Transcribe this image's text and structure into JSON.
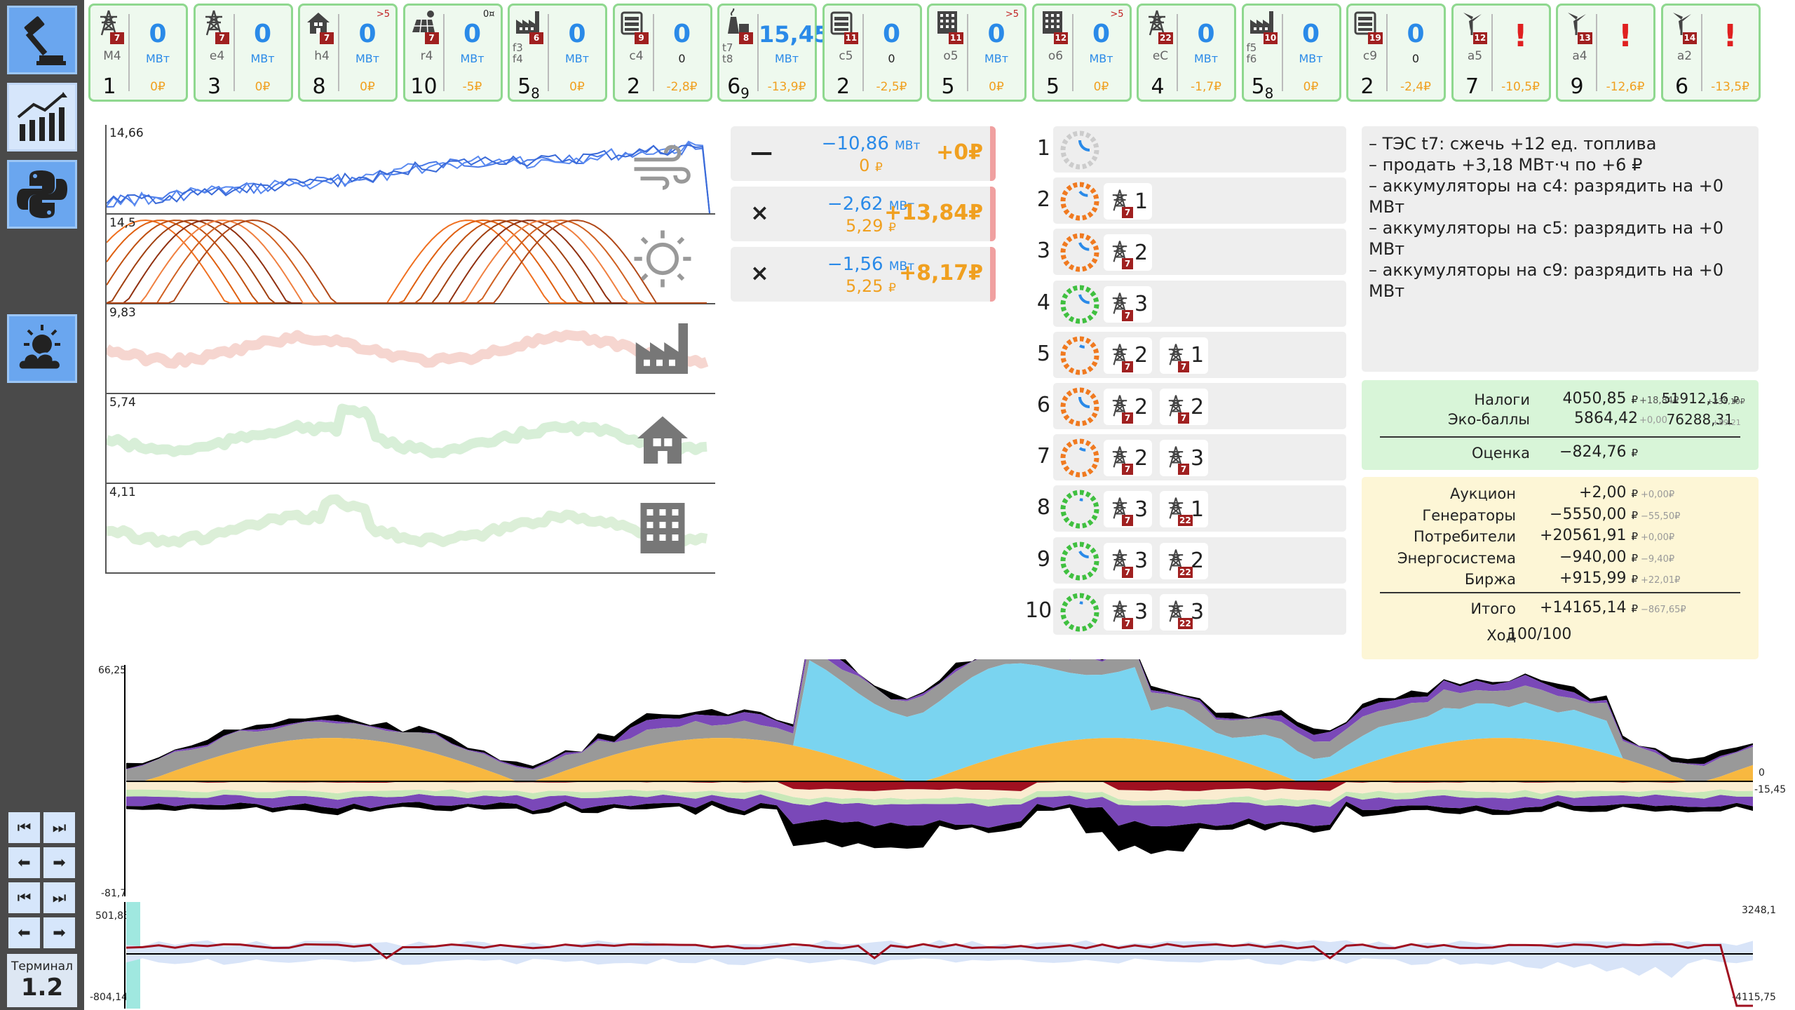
{
  "terminal": {
    "label": "Терминал",
    "version": "1.2"
  },
  "colors": {
    "accent": "#6aa6ef",
    "card_bg": "#eef9ee",
    "card_border": "#8fd88f",
    "blue": "#2a8ae8",
    "orange": "#f0a020",
    "badge": "#a02020"
  },
  "objects": [
    {
      "label": "M4",
      "badge": "7",
      "value": "0",
      "unit": "МВт",
      "num": "1",
      "money": "0₽",
      "icon": "power-line-icon"
    },
    {
      "label": "e4",
      "badge": "7",
      "value": "0",
      "unit": "МВт",
      "num": "3",
      "money": "0₽",
      "icon": "power-line-icon"
    },
    {
      "label": "h4",
      "badge": "7",
      "sup": ">5",
      "value": "0",
      "unit": "МВт",
      "num": "8",
      "money": "0₽",
      "icon": "house-icon"
    },
    {
      "label": "r4",
      "badge": "7",
      "sup": "0¤",
      "value": "0",
      "unit": "МВт",
      "num": "10",
      "money": "-5₽",
      "icon": "solar-panel-icon"
    },
    {
      "label": "f3 f4",
      "badge": "6",
      "value": "0",
      "unit": "МВт",
      "num": "5",
      "numsub": "8",
      "money": "0₽",
      "icon": "factory-icon"
    },
    {
      "label": "c4",
      "badge": "9",
      "value": "0",
      "unit": "0",
      "num": "2",
      "money": "-2,8₽",
      "icon": "battery-icon"
    },
    {
      "label": "t7 t8",
      "badge": "8",
      "value": "15,45",
      "unit": "МВт",
      "num": "6",
      "numsub": "9",
      "money": "-13,9₽",
      "icon": "thermal-plant-icon"
    },
    {
      "label": "c5",
      "badge": "11",
      "value": "0",
      "unit": "0",
      "num": "2",
      "money": "-2,5₽",
      "icon": "battery-icon"
    },
    {
      "label": "o5",
      "badge": "11",
      "sup": ">5",
      "value": "0",
      "unit": "МВт",
      "num": "5",
      "money": "0₽",
      "icon": "office-building-icon"
    },
    {
      "label": "o6",
      "badge": "12",
      "sup": ">5",
      "value": "0",
      "unit": "МВт",
      "num": "5",
      "money": "0₽",
      "icon": "office-building-icon"
    },
    {
      "label": "eC",
      "badge": "22",
      "value": "0",
      "unit": "МВт",
      "num": "4",
      "money": "-1,7₽",
      "icon": "power-line-icon"
    },
    {
      "label": "f5 f6",
      "badge": "10",
      "value": "0",
      "unit": "МВт",
      "num": "5",
      "numsub": "8",
      "money": "0₽",
      "icon": "factory-icon"
    },
    {
      "label": "c9",
      "badge": "19",
      "value": "0",
      "unit": "0",
      "num": "2",
      "money": "-2,4₽",
      "icon": "battery-icon"
    },
    {
      "label": "a5",
      "badge": "12",
      "value": "!",
      "unit": "",
      "num": "7",
      "money": "-10,5₽",
      "icon": "wind-turbine-icon"
    },
    {
      "label": "a4",
      "badge": "13",
      "value": "!",
      "unit": "",
      "num": "9",
      "money": "-12,6₽",
      "icon": "wind-turbine-icon"
    },
    {
      "label": "a2",
      "badge": "14",
      "value": "!",
      "unit": "",
      "num": "6",
      "money": "-13,5₽",
      "icon": "wind-turbine-icon"
    }
  ],
  "forecasts": [
    {
      "max": "14,66",
      "icon": "wind-icon"
    },
    {
      "max": "14,5",
      "icon": "sun-icon"
    },
    {
      "max": "9,83",
      "icon": "factory-icon"
    },
    {
      "max": "5,74",
      "icon": "house-icon"
    },
    {
      "max": "4,11",
      "icon": "office-building-icon"
    }
  ],
  "trades": [
    {
      "sym": "—",
      "mw": "−10,86",
      "mw_unit": "МВт",
      "price": "0",
      "price_unit": "₽",
      "profit": "+0₽"
    },
    {
      "sym": "×",
      "mw": "−2,62",
      "mw_unit": "МВт",
      "price": "5,29",
      "price_unit": "₽",
      "profit": "+13,84₽"
    },
    {
      "sym": "×",
      "mw": "−1,56",
      "mw_unit": "МВт",
      "price": "5,25",
      "price_unit": "₽",
      "profit": "+8,17₽"
    }
  ],
  "lines": [
    {
      "n": "1",
      "chips": []
    },
    {
      "n": "2",
      "chips": [
        {
          "b": "7",
          "v": "1"
        }
      ]
    },
    {
      "n": "3",
      "chips": [
        {
          "b": "7",
          "v": "2"
        }
      ]
    },
    {
      "n": "4",
      "chips": [
        {
          "b": "7",
          "v": "3"
        }
      ]
    },
    {
      "n": "5",
      "chips": [
        {
          "b": "7",
          "v": "2"
        },
        {
          "b": "7",
          "v": "1"
        }
      ]
    },
    {
      "n": "6",
      "chips": [
        {
          "b": "7",
          "v": "2"
        },
        {
          "b": "7",
          "v": "2"
        }
      ]
    },
    {
      "n": "7",
      "chips": [
        {
          "b": "7",
          "v": "2"
        },
        {
          "b": "7",
          "v": "3"
        }
      ]
    },
    {
      "n": "8",
      "chips": [
        {
          "b": "7",
          "v": "3"
        },
        {
          "b": "22",
          "v": "1"
        }
      ]
    },
    {
      "n": "9",
      "chips": [
        {
          "b": "7",
          "v": "3"
        },
        {
          "b": "22",
          "v": "2"
        }
      ]
    },
    {
      "n": "10",
      "chips": [
        {
          "b": "7",
          "v": "3"
        },
        {
          "b": "22",
          "v": "3"
        }
      ]
    }
  ],
  "log": [
    "– ТЭС t7: сжечь +12 ед. топлива",
    "– продать +3,18 МВт·ч по +6 ₽",
    "– аккумуляторы на c4: разрядить на +0 МВт",
    "– аккумуляторы на c5: разрядить на +0 МВт",
    "– аккумуляторы на c9: разрядить на +0 МВт"
  ],
  "tax": {
    "taxes_label": "Налоги",
    "taxes_val": "4050,85",
    "taxes_cur": "₽",
    "taxes_delta": "+18,84₽",
    "taxes_total": "51912,16",
    "taxes_total_cur": "₽",
    "taxes_total_delta": "+235,10₽",
    "eco_label": "Эко-баллы",
    "eco_val": "5864,42",
    "eco_delta": "+0,00",
    "eco_total": "76288,31",
    "eco_total_delta": "+89,21",
    "score_label": "Оценка",
    "score_val": "−824,76",
    "score_cur": "₽"
  },
  "summary": [
    {
      "label": "Аукцион",
      "val": "+2,00",
      "cur": "₽",
      "delta": "+0,00₽"
    },
    {
      "label": "Генераторы",
      "val": "−5550,00",
      "cur": "₽",
      "delta": "−55,50₽"
    },
    {
      "label": "Потребители",
      "val": "+20561,91",
      "cur": "₽",
      "delta": "+0,00₽"
    },
    {
      "label": "Энергосистема",
      "val": "−940,00",
      "cur": "₽",
      "delta": "−9,40₽"
    },
    {
      "label": "Биржа",
      "val": "+915,99",
      "cur": "₽",
      "delta": "+22,01₽"
    }
  ],
  "total": {
    "label": "Итого",
    "val": "+14165,14",
    "cur": "₽",
    "delta": "−867,65₽"
  },
  "turn": {
    "label": "Ход",
    "val": "100/100"
  },
  "balance_chart": {
    "ymax": "66,25",
    "ymin": "-81,7",
    "zero": "0",
    "last": "-15,45"
  },
  "money_chart": {
    "ymax": "501,85",
    "ymin": "-804,14",
    "right_max": "3248,1",
    "right_min": "-4115,75"
  },
  "chart_data": [
    {
      "type": "line",
      "max": "14,66",
      "series": 3
    },
    {
      "type": "line",
      "max": "14,5",
      "series": 8
    },
    {
      "type": "area",
      "ylim": [
        -81.7,
        66.25
      ]
    },
    {
      "type": "line",
      "ylim": [
        -804.14,
        501.85
      ]
    }
  ]
}
